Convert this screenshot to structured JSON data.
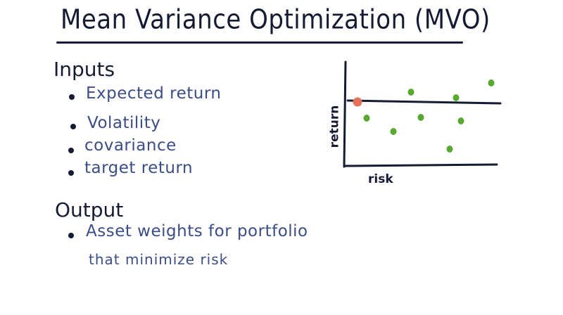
{
  "title": "Mean Variance Optimization (MVO)",
  "inputs_heading": "Inputs",
  "inputs": [
    "Expected return",
    "Volatility",
    "covariance",
    "target return"
  ],
  "output_heading": "Output",
  "output_line1": "Asset weights for portfolio",
  "output_line2": "that minimize risk",
  "plot": {
    "ylabel": "return",
    "xlabel": "risk",
    "colors": {
      "ink": "#151b33",
      "asset": "#5aa832",
      "target": "#e5735b"
    }
  }
}
